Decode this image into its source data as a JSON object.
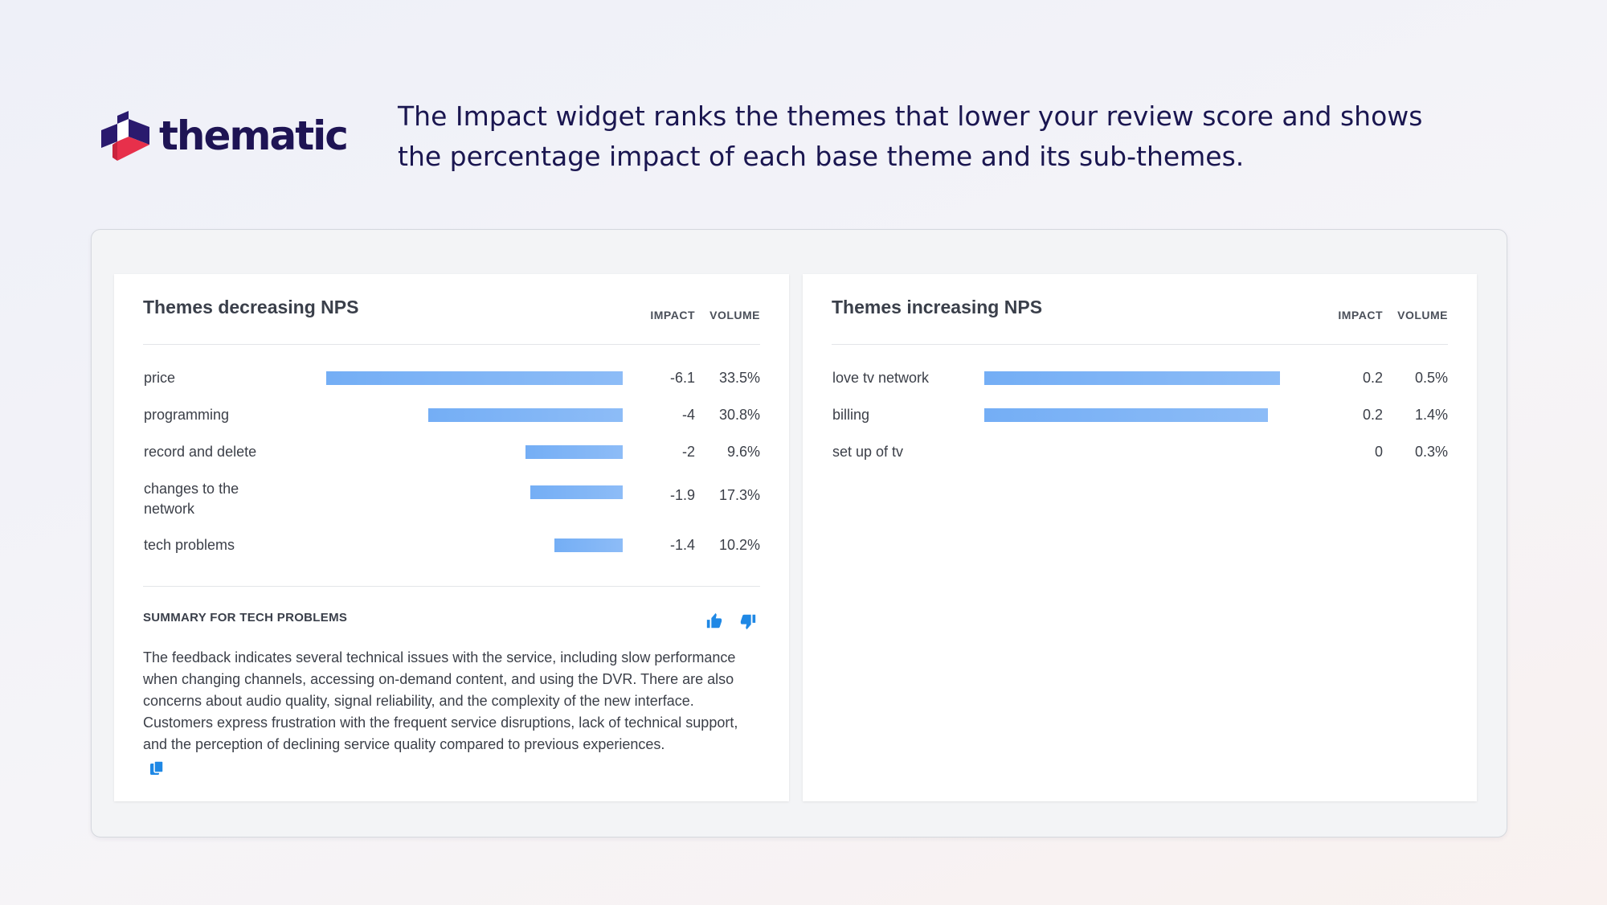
{
  "brand": {
    "name": "thematic",
    "colors": {
      "navy": "#2a1a6e",
      "red": "#e7304b",
      "accent_bar": "#74aef5",
      "icon_blue": "#1f88e5"
    }
  },
  "hero": {
    "text": "The Impact widget ranks the themes that lower your review score and shows the percentage impact of each base theme and its sub-themes."
  },
  "left_panel": {
    "title": "Themes decreasing NPS",
    "col_impact": "IMPACT",
    "col_volume": "VOLUME",
    "rows": [
      {
        "label": "price",
        "impact": "-6.1",
        "volume": "33.5%",
        "impact_value": -6.1
      },
      {
        "label": "programming",
        "impact": "-4",
        "volume": "30.8%",
        "impact_value": -4
      },
      {
        "label": "record and delete",
        "impact": "-2",
        "volume": "9.6%",
        "impact_value": -2
      },
      {
        "label": "changes to the network",
        "impact": "-1.9",
        "volume": "17.3%",
        "impact_value": -1.9
      },
      {
        "label": "tech problems",
        "impact": "-1.4",
        "volume": "10.2%",
        "impact_value": -1.4
      }
    ],
    "summary": {
      "title": "SUMMARY FOR TECH PROBLEMS",
      "text": "The feedback indicates several technical issues with the service, including slow performance when changing channels, accessing on-demand content, and using the DVR. There are also concerns about audio quality, signal reliability, and the complexity of the new interface. Customers express frustration with the frequent service disruptions, lack of technical support, and the perception of declining service quality compared to previous experiences.",
      "icons": [
        "thumbs-up-icon",
        "thumbs-down-icon",
        "copy-icon"
      ]
    }
  },
  "right_panel": {
    "title": "Themes increasing NPS",
    "col_impact": "IMPACT",
    "col_volume": "VOLUME",
    "rows": [
      {
        "label": "love tv network",
        "impact": "0.2",
        "volume": "0.5%",
        "impact_value": 0.2
      },
      {
        "label": "billing",
        "impact": "0.2",
        "volume": "1.4%",
        "impact_value": 0.192
      },
      {
        "label": "set up of tv",
        "impact": "0",
        "volume": "0.3%",
        "impact_value": 0
      }
    ]
  }
}
